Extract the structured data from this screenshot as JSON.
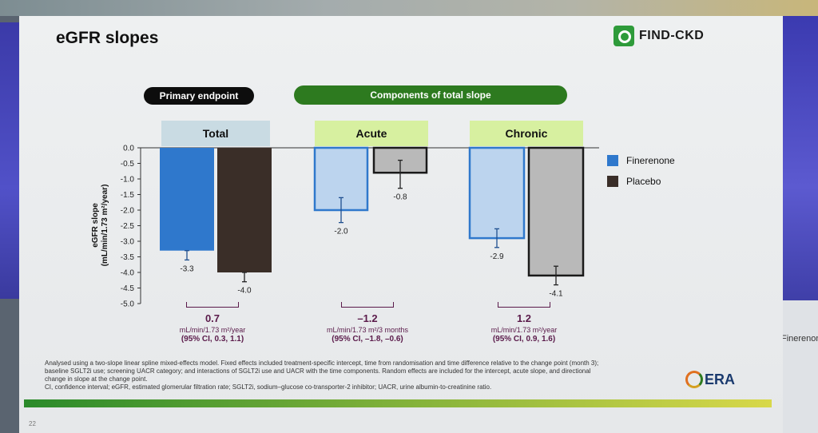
{
  "slide": {
    "title": "eGFR slopes",
    "logo_text": "FIND-CKD",
    "page_number": "22",
    "primary_label": "Primary endpoint",
    "components_label": "Components of total slope",
    "footnote_lines": [
      "Analysed using a two-slope linear spline mixed-effects model. Fixed effects included treatment-specific intercept, time from randomisation and time difference relative to the change point (month 3);",
      "baseline SGLT2i use; screening UACR category; and interactions of SGLT2i use and UACR with the time components. Random effects are included for the intercept, acute slope, and directional",
      "change in slope at the change point.",
      "CI, confidence interval; eGFR, estimated glomerular filtration rate; SGLT2i, sodium–glucose co-transporter-2 inhibitor; UACR, urine albumin-to-creatinine ratio."
    ],
    "era_logo": "ERA",
    "right_screen_text": "Finerenone"
  },
  "colors": {
    "finerenone": "#2f78cc",
    "placebo": "#3a2e28",
    "finerenone_light": "#bcd4ee",
    "placebo_light": "#b9b9b9",
    "header_total": "#c9dbe3",
    "header_components": "#d7f0a0"
  },
  "differences": [
    {
      "value": "0.7",
      "unit": "mL/min/1.73 m²/year",
      "ci": "(95% CI, 0.3, 1.1)"
    },
    {
      "value": "–1.2",
      "unit": "mL/min/1.73 m²/3 months",
      "ci": "(95% CI, –1.8, –0.6)"
    },
    {
      "value": "1.2",
      "unit": "mL/min/1.73 m²/year",
      "ci": "(95% CI, 0.9, 1.6)"
    }
  ],
  "chart_data": {
    "type": "bar",
    "categories": [
      "Total",
      "Acute",
      "Chronic"
    ],
    "series": [
      {
        "name": "Finerenone",
        "values": [
          -3.3,
          -2.0,
          -2.9
        ],
        "err_low": [
          -3.6,
          -2.4,
          -3.2
        ],
        "err_high": [
          -3.3,
          -1.6,
          -2.6
        ],
        "labels": [
          "-3.3",
          "-2.0",
          "-2.9"
        ]
      },
      {
        "name": "Placebo",
        "values": [
          -4.0,
          -0.8,
          -4.1
        ],
        "err_low": [
          -4.3,
          -1.3,
          -4.4
        ],
        "err_high": [
          -4.0,
          -0.4,
          -3.8
        ],
        "labels": [
          "-4.0",
          "-0.8",
          "-4.1"
        ]
      }
    ],
    "ylabel": "eGFR slope (mL/min/1.73 m²/year)",
    "ylim": [
      -5.0,
      0.0
    ],
    "yticks": [
      "0.0",
      "-0.5",
      "-1.0",
      "-1.5",
      "-2.0",
      "-2.5",
      "-3.0",
      "-3.5",
      "-4.0",
      "-4.5",
      "-5.0"
    ],
    "legend_position": "right",
    "grid": false
  }
}
